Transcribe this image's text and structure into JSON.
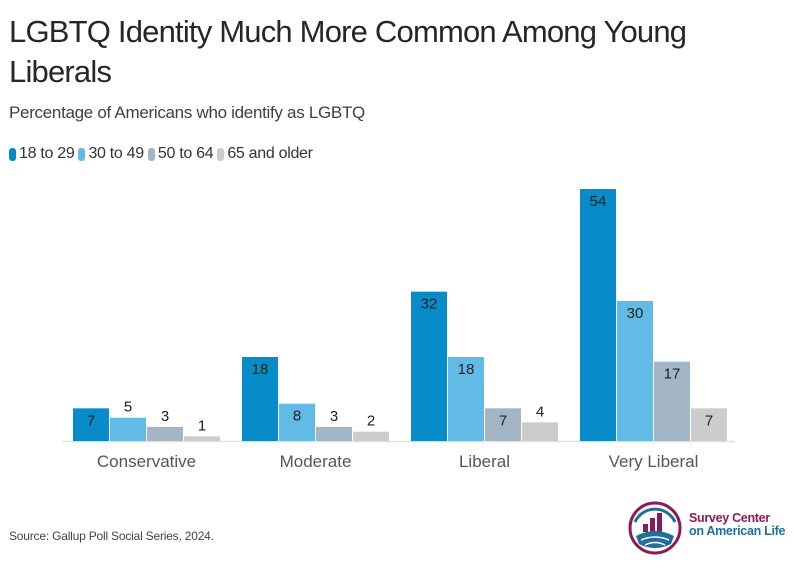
{
  "chart_data": {
    "type": "bar",
    "title": "LGBTQ Identity Much More Common Among Young Liberals",
    "subtitle": "Percentage of Americans who identify as LGBTQ",
    "categories": [
      "Conservative",
      "Moderate",
      "Liberal",
      "Very Liberal"
    ],
    "series": [
      {
        "name": "18 to 29",
        "color": "#078bc9",
        "values": [
          7,
          18,
          32,
          54
        ]
      },
      {
        "name": "30 to 49",
        "color": "#62bbe6",
        "values": [
          5,
          8,
          18,
          30
        ]
      },
      {
        "name": "50 to 64",
        "color": "#a2b6c6",
        "values": [
          3,
          3,
          7,
          17
        ]
      },
      {
        "name": "65 and older",
        "color": "#cccccc",
        "values": [
          1,
          2,
          4,
          7
        ]
      }
    ],
    "xlabel": "",
    "ylabel": "",
    "ylim": [
      0,
      54
    ],
    "grid": false,
    "legend_position": "top-left",
    "data_labels": true
  },
  "source": "Source: Gallup Poll Social Series, 2024.",
  "logo": {
    "icon": "survey-center-logo-icon",
    "line1": "Survey Center",
    "line2": "on American Life"
  }
}
